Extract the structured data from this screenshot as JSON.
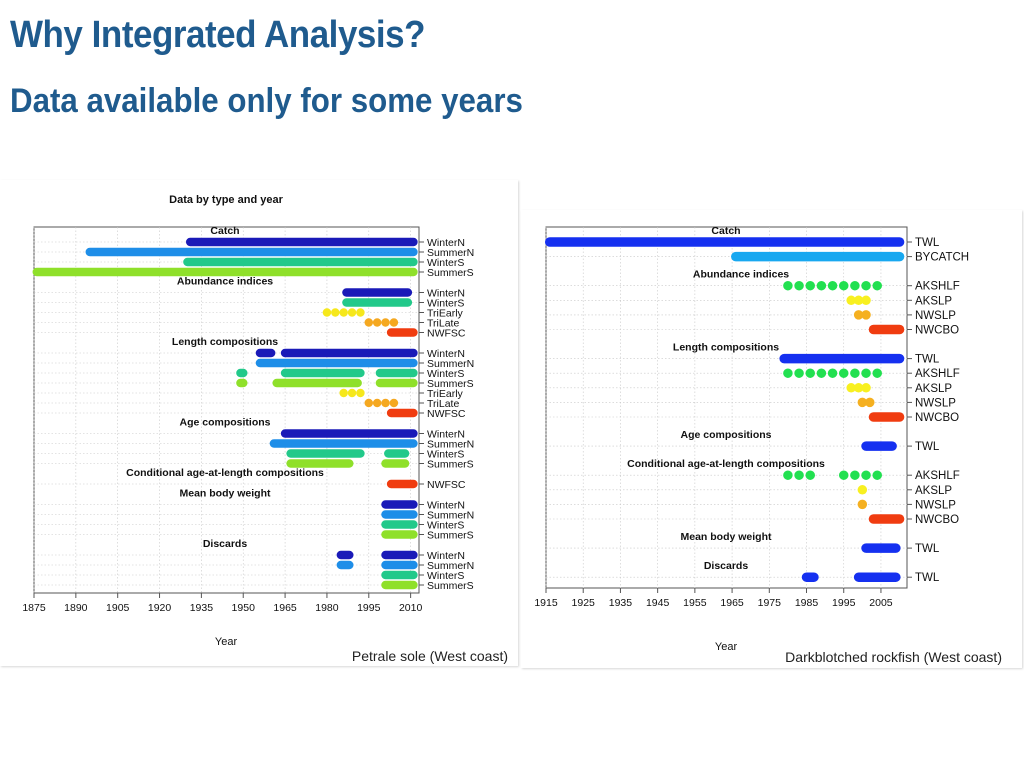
{
  "slide": {
    "title": "Why Integrated Analysis?",
    "subtitle": "Data available only for some years"
  },
  "chart_data": [
    {
      "type": "timeline",
      "title": "Data by type and year",
      "xlabel": "Year",
      "caption": "Petrale sole (West coast)",
      "xlim": [
        1875,
        2013
      ],
      "xticks": [
        1875,
        1890,
        1905,
        1920,
        1935,
        1950,
        1965,
        1980,
        1995,
        2010
      ],
      "groups": [
        {
          "label": "Catch",
          "rows": [
            {
              "label": "WinterN",
              "color": "#1a1ab8",
              "segments": [
                [
                  1931,
                  2011
                ]
              ]
            },
            {
              "label": "SummerN",
              "color": "#1e8ee8",
              "segments": [
                [
                  1895,
                  2011
                ]
              ]
            },
            {
              "label": "WinterS",
              "color": "#22c98a",
              "segments": [
                [
                  1930,
                  2011
                ]
              ]
            },
            {
              "label": "SummerS",
              "color": "#8fe02a",
              "segments": [
                [
                  1876,
                  2011
                ]
              ]
            }
          ]
        },
        {
          "label": "Abundance indices",
          "rows": [
            {
              "label": "WinterN",
              "color": "#1a1ab8",
              "segments": [
                [
                  1987,
                  2009
                ]
              ]
            },
            {
              "label": "WinterS",
              "color": "#22c98a",
              "segments": [
                [
                  1987,
                  2009
                ]
              ]
            },
            {
              "label": "TriEarly",
              "color": "#f6e81c",
              "points": [
                1980,
                1983,
                1986,
                1989,
                1992
              ]
            },
            {
              "label": "TriLate",
              "color": "#f5a820",
              "points": [
                1995,
                1998,
                2001,
                2004
              ]
            },
            {
              "label": "NWFSC",
              "color": "#f03c10",
              "segments": [
                [
                  2003,
                  2011
                ]
              ]
            }
          ]
        },
        {
          "label": "Length compositions",
          "rows": [
            {
              "label": "WinterN",
              "color": "#1a1ab8",
              "segments": [
                [
                  1956,
                  1960
                ],
                [
                  1965,
                  2011
                ]
              ]
            },
            {
              "label": "SummerN",
              "color": "#1e8ee8",
              "segments": [
                [
                  1956,
                  2011
                ]
              ]
            },
            {
              "label": "WinterS",
              "color": "#22c98a",
              "segments": [
                [
                  1949,
                  1950
                ],
                [
                  1965,
                  1992
                ],
                [
                  1999,
                  2011
                ]
              ]
            },
            {
              "label": "SummerS",
              "color": "#8fe02a",
              "segments": [
                [
                  1949,
                  1950
                ],
                [
                  1962,
                  1991
                ],
                [
                  1999,
                  2011
                ]
              ]
            },
            {
              "label": "TriEarly",
              "color": "#f6e81c",
              "points": [
                1986,
                1989,
                1992
              ]
            },
            {
              "label": "TriLate",
              "color": "#f5a820",
              "points": [
                1995,
                1998,
                2001,
                2004
              ]
            },
            {
              "label": "NWFSC",
              "color": "#f03c10",
              "segments": [
                [
                  2003,
                  2011
                ]
              ]
            }
          ]
        },
        {
          "label": "Age compositions",
          "rows": [
            {
              "label": "WinterN",
              "color": "#1a1ab8",
              "segments": [
                [
                  1965,
                  2011
                ]
              ]
            },
            {
              "label": "SummerN",
              "color": "#1e8ee8",
              "segments": [
                [
                  1961,
                  2011
                ]
              ]
            },
            {
              "label": "WinterS",
              "color": "#22c98a",
              "segments": [
                [
                  1967,
                  1992
                ],
                [
                  2002,
                  2008
                ]
              ]
            },
            {
              "label": "SummerS",
              "color": "#8fe02a",
              "segments": [
                [
                  1967,
                  1988
                ],
                [
                  2001,
                  2008
                ]
              ]
            }
          ]
        },
        {
          "label": "Conditional age-at-length compositions",
          "rows": [
            {
              "label": "NWFSC",
              "color": "#f03c10",
              "segments": [
                [
                  2003,
                  2011
                ]
              ]
            }
          ]
        },
        {
          "label": "Mean body weight",
          "rows": [
            {
              "label": "WinterN",
              "color": "#1a1ab8",
              "segments": [
                [
                  2001,
                  2011
                ]
              ]
            },
            {
              "label": "SummerN",
              "color": "#1e8ee8",
              "segments": [
                [
                  2001,
                  2011
                ]
              ]
            },
            {
              "label": "WinterS",
              "color": "#22c98a",
              "segments": [
                [
                  2001,
                  2011
                ]
              ]
            },
            {
              "label": "SummerS",
              "color": "#8fe02a",
              "segments": [
                [
                  2001,
                  2011
                ]
              ]
            }
          ]
        },
        {
          "label": "Discards",
          "rows": [
            {
              "label": "WinterN",
              "color": "#1a1ab8",
              "segments": [
                [
                  1985,
                  1988
                ],
                [
                  2001,
                  2011
                ]
              ]
            },
            {
              "label": "SummerN",
              "color": "#1e8ee8",
              "segments": [
                [
                  1985,
                  1988
                ],
                [
                  2001,
                  2011
                ]
              ]
            },
            {
              "label": "WinterS",
              "color": "#22c98a",
              "segments": [
                [
                  2001,
                  2011
                ]
              ]
            },
            {
              "label": "SummerS",
              "color": "#8fe02a",
              "segments": [
                [
                  2001,
                  2011
                ]
              ]
            }
          ]
        }
      ]
    },
    {
      "type": "timeline",
      "title": "",
      "xlabel": "Year",
      "caption": "Darkblotched rockfish (West coast)",
      "xlim": [
        1915,
        2012
      ],
      "xticks": [
        1915,
        1925,
        1935,
        1945,
        1955,
        1965,
        1975,
        1985,
        1995,
        2005
      ],
      "groups": [
        {
          "label": "Catch",
          "rows": [
            {
              "label": "TWL",
              "color": "#1530f0",
              "segments": [
                [
                  1916,
                  2010
                ]
              ]
            },
            {
              "label": "BYCATCH",
              "color": "#18a8f0",
              "segments": [
                [
                  1966,
                  2010
                ]
              ]
            }
          ]
        },
        {
          "label": "Abundance indices",
          "rows": [
            {
              "label": "AKSHLF",
              "color": "#22e050",
              "points": [
                1980,
                1983,
                1986,
                1989,
                1992,
                1995,
                1998,
                2001,
                2004
              ]
            },
            {
              "label": "AKSLP",
              "color": "#f8f020",
              "points": [
                1997,
                1999,
                2001
              ]
            },
            {
              "label": "NWSLP",
              "color": "#f5b020",
              "points": [
                1999,
                2001
              ]
            },
            {
              "label": "NWCBO",
              "color": "#f03c10",
              "segments": [
                [
                  2003,
                  2010
                ]
              ]
            }
          ]
        },
        {
          "label": "Length compositions",
          "rows": [
            {
              "label": "TWL",
              "color": "#1530f0",
              "segments": [
                [
                  1979,
                  2010
                ]
              ]
            },
            {
              "label": "AKSHLF",
              "color": "#22e050",
              "points": [
                1980,
                1983,
                1986,
                1989,
                1992,
                1995,
                1998,
                2001,
                2004
              ]
            },
            {
              "label": "AKSLP",
              "color": "#f8f020",
              "points": [
                1997,
                1999,
                2001
              ]
            },
            {
              "label": "NWSLP",
              "color": "#f5b020",
              "points": [
                2000,
                2002
              ]
            },
            {
              "label": "NWCBO",
              "color": "#f03c10",
              "segments": [
                [
                  2003,
                  2010
                ]
              ]
            }
          ]
        },
        {
          "label": "Age compositions",
          "rows": [
            {
              "label": "TWL",
              "color": "#1530f0",
              "segments": [
                [
                  2001,
                  2008
                ]
              ]
            }
          ]
        },
        {
          "label": "Conditional age-at-length compositions",
          "rows": [
            {
              "label": "AKSHLF",
              "color": "#22e050",
              "points": [
                1980,
                1983,
                1986,
                1995,
                1998,
                2001,
                2004
              ]
            },
            {
              "label": "AKSLP",
              "color": "#f8f020",
              "points": [
                2000
              ]
            },
            {
              "label": "NWSLP",
              "color": "#f5b020",
              "points": [
                2000
              ]
            },
            {
              "label": "NWCBO",
              "color": "#f03c10",
              "segments": [
                [
                  2003,
                  2010
                ]
              ]
            }
          ]
        },
        {
          "label": "Mean body weight",
          "rows": [
            {
              "label": "TWL",
              "color": "#1530f0",
              "segments": [
                [
                  2001,
                  2009
                ]
              ]
            }
          ]
        },
        {
          "label": "Discards",
          "rows": [
            {
              "label": "TWL",
              "color": "#1530f0",
              "segments": [
                [
                  1985,
                  1987
                ],
                [
                  1999,
                  2009
                ]
              ]
            }
          ]
        }
      ]
    }
  ]
}
